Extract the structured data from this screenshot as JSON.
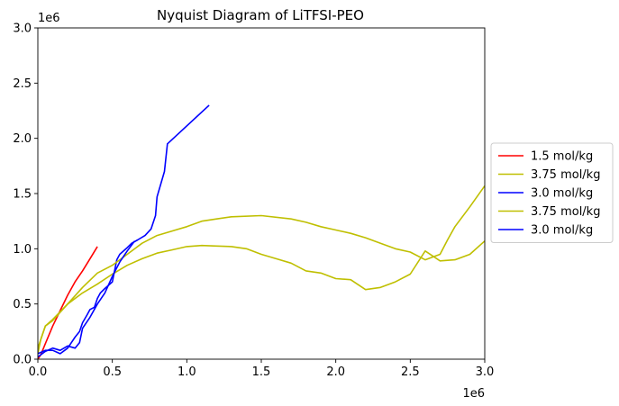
{
  "chart_data": {
    "type": "line",
    "title": "Nyquist Diagram of LiTFSI-PEO",
    "xlabel": "",
    "ylabel": "",
    "x_offset_label": "1e6",
    "y_offset_label": "1e6",
    "xlim": [
      0,
      3.0
    ],
    "ylim": [
      0,
      3.0
    ],
    "x_ticks": [
      0,
      0.5,
      1.0,
      1.5,
      2.0,
      2.5,
      3.0
    ],
    "x_tick_labels": [
      "0.0",
      "0.5",
      "1.0",
      "1.5",
      "2.0",
      "2.5",
      "3.0"
    ],
    "y_ticks": [
      0,
      0.5,
      1.0,
      1.5,
      2.0,
      2.5,
      3.0
    ],
    "y_tick_labels": [
      "0.0",
      "0.5",
      "1.0",
      "1.5",
      "2.0",
      "2.5",
      "3.0"
    ],
    "grid": false,
    "legend_position": "right, outside plot",
    "series": [
      {
        "name": "1.5 mol/kg",
        "color": "#ff0000",
        "x": [
          0.0,
          0.02,
          0.05,
          0.1,
          0.15,
          0.2,
          0.25,
          0.3,
          0.35,
          0.4
        ],
        "y": [
          0.0,
          0.04,
          0.14,
          0.3,
          0.44,
          0.58,
          0.7,
          0.8,
          0.91,
          1.02
        ]
      },
      {
        "name": "3.75 mol/kg",
        "color": "#bfbf00",
        "x": [
          0.0,
          0.02,
          0.05,
          0.1,
          0.15,
          0.2,
          0.3,
          0.4,
          0.5,
          0.6,
          0.7,
          0.8,
          0.9,
          1.0,
          1.1,
          1.2,
          1.3,
          1.4,
          1.5,
          1.6,
          1.7,
          1.8,
          1.9,
          2.0,
          2.1,
          2.2,
          2.3,
          2.4,
          2.5,
          2.6,
          2.7,
          2.8,
          2.9,
          3.0
        ],
        "y": [
          0.05,
          0.18,
          0.3,
          0.36,
          0.43,
          0.5,
          0.6,
          0.68,
          0.77,
          0.85,
          0.91,
          0.96,
          0.99,
          1.02,
          1.03,
          1.025,
          1.02,
          1.0,
          0.95,
          0.91,
          0.87,
          0.8,
          0.78,
          0.73,
          0.72,
          0.63,
          0.65,
          0.7,
          0.77,
          0.98,
          0.89,
          0.9,
          0.95,
          1.07
        ]
      },
      {
        "name": "3.0 mol/kg",
        "color": "#0000ff",
        "x": [
          0.0,
          0.05,
          0.1,
          0.15,
          0.18,
          0.2,
          0.22,
          0.25,
          0.28,
          0.3,
          0.33,
          0.35,
          0.38,
          0.4,
          0.42,
          0.45,
          0.5,
          0.53,
          0.55,
          0.6,
          0.63,
          0.67,
          0.72,
          0.76,
          0.79,
          0.8,
          0.85,
          0.87,
          1.15
        ],
        "y": [
          0.05,
          0.08,
          0.08,
          0.05,
          0.08,
          0.1,
          0.14,
          0.2,
          0.25,
          0.33,
          0.4,
          0.45,
          0.47,
          0.55,
          0.6,
          0.64,
          0.7,
          0.9,
          0.95,
          1.01,
          1.05,
          1.08,
          1.12,
          1.18,
          1.3,
          1.47,
          1.7,
          1.95,
          2.3
        ]
      },
      {
        "name": "3.75 mol/kg",
        "color": "#bfbf00",
        "x": [
          0.0,
          0.05,
          0.1,
          0.2,
          0.3,
          0.4,
          0.5,
          0.6,
          0.7,
          0.8,
          1.0,
          1.1,
          1.2,
          1.3,
          1.5,
          1.7,
          1.8,
          1.9,
          2.0,
          2.1,
          2.2,
          2.3,
          2.4,
          2.5,
          2.6,
          2.7,
          2.75,
          2.8,
          2.9,
          3.0
        ],
        "y": [
          0.1,
          0.3,
          0.35,
          0.5,
          0.65,
          0.78,
          0.85,
          0.95,
          1.05,
          1.12,
          1.2,
          1.25,
          1.27,
          1.29,
          1.3,
          1.27,
          1.24,
          1.2,
          1.17,
          1.14,
          1.1,
          1.05,
          1.0,
          0.97,
          0.9,
          0.95,
          1.08,
          1.2,
          1.38,
          1.57
        ]
      },
      {
        "name": "3.0 mol/kg",
        "color": "#0000ff",
        "x": [
          0.0,
          0.05,
          0.1,
          0.15,
          0.2,
          0.25,
          0.28,
          0.3,
          0.35,
          0.4,
          0.45,
          0.5,
          0.55,
          0.6,
          0.65
        ],
        "y": [
          0.02,
          0.07,
          0.1,
          0.08,
          0.12,
          0.1,
          0.15,
          0.28,
          0.38,
          0.5,
          0.6,
          0.75,
          0.88,
          0.98,
          1.07
        ]
      }
    ]
  }
}
